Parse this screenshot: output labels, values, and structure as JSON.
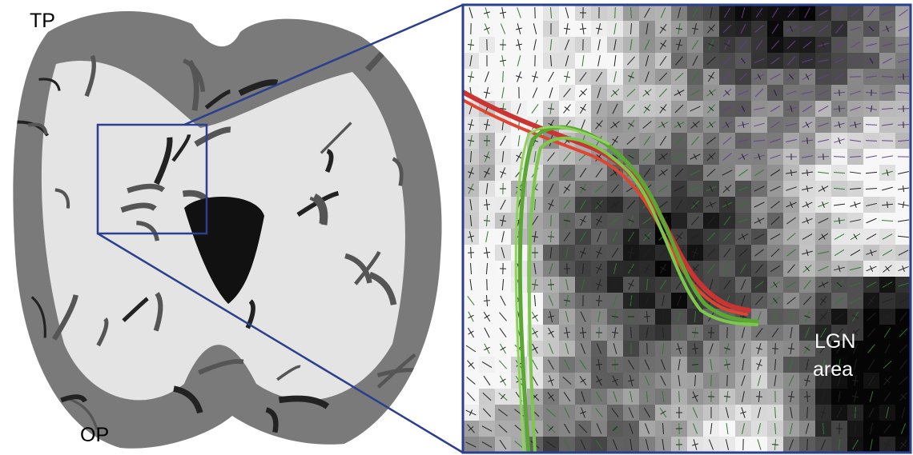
{
  "figure": {
    "brain_labels": {
      "top": "TP",
      "bottom": "OP"
    },
    "zoom_label": [
      "LGN",
      "area"
    ]
  }
}
